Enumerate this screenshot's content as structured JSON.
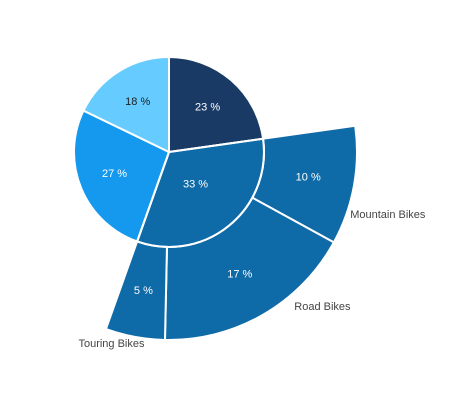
{
  "chart_data": {
    "type": "pie",
    "title": "",
    "grid": false,
    "legend": "none",
    "inner": [
      {
        "value": 23,
        "label": "23 %",
        "color": "#1a3a66",
        "label_style": "light"
      },
      {
        "value": 33,
        "label": "33 %",
        "color": "#0f6aa8",
        "label_style": "light"
      },
      {
        "value": 27,
        "label": "27 %",
        "color": "#1599ef",
        "label_style": "light"
      },
      {
        "value": 18,
        "label": "18 %",
        "color": "#66ccff",
        "label_style": "dark"
      }
    ],
    "outer": [
      {
        "value": 10,
        "label": "10 %",
        "category": "Mountain Bikes",
        "color": "#0f6aa8"
      },
      {
        "value": 17,
        "label": "17 %",
        "category": "Road Bikes",
        "color": "#0f6aa8"
      },
      {
        "value": 5,
        "label": "5 %",
        "category": "Touring Bikes",
        "color": "#0f6aa8"
      }
    ]
  }
}
